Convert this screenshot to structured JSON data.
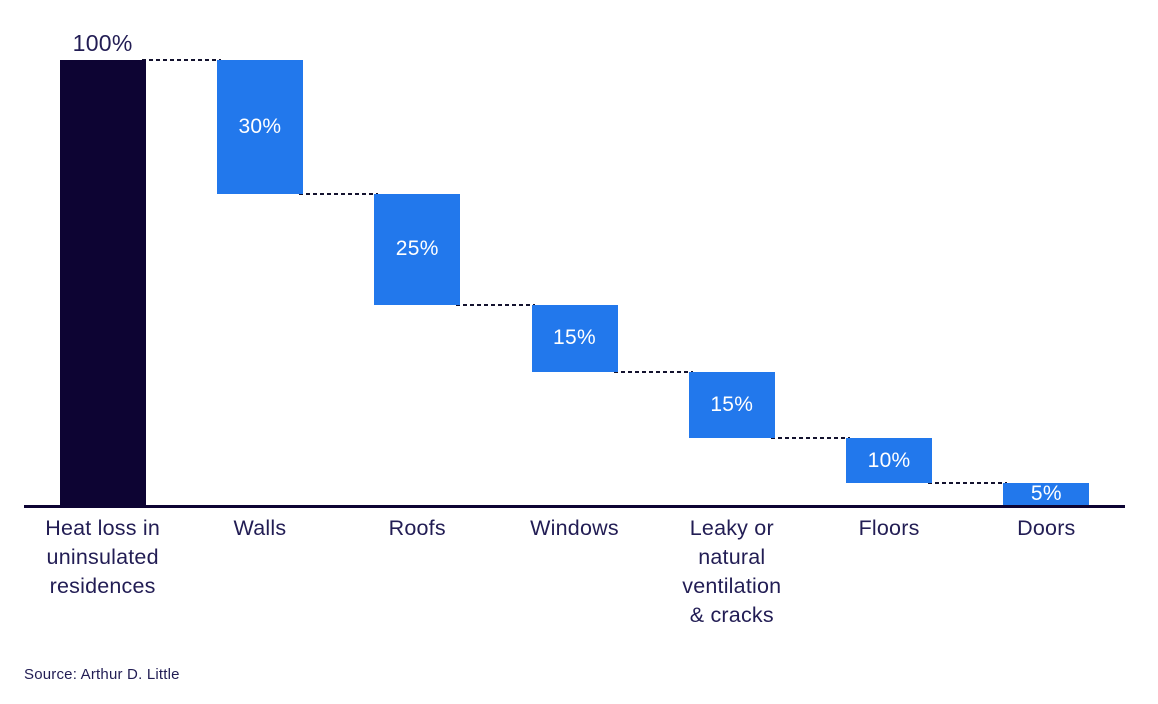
{
  "chart_data": {
    "type": "bar",
    "subtype": "waterfall",
    "title": "",
    "categories": [
      "Heat loss in\nuninsulated\nresidences",
      "Walls",
      "Roofs",
      "Windows",
      "Leaky or\nnatural\nventilation\n& cracks",
      "Floors",
      "Doors"
    ],
    "values": [
      100,
      30,
      25,
      15,
      15,
      10,
      5
    ],
    "value_labels": [
      "100%",
      "30%",
      "25%",
      "15%",
      "15%",
      "10%",
      "5%"
    ],
    "bar_roles": [
      "total",
      "step",
      "step",
      "step",
      "step",
      "step",
      "step"
    ],
    "running_levels": [
      [
        0,
        100
      ],
      [
        70,
        100
      ],
      [
        45,
        70
      ],
      [
        30,
        45
      ],
      [
        15,
        30
      ],
      [
        5,
        15
      ],
      [
        0,
        5
      ]
    ],
    "unit": "%",
    "ylim": [
      0,
      100
    ],
    "grid": false,
    "legend": false,
    "colors": {
      "total_bar": "#0d0433",
      "step_bar": "#2278ec",
      "text_navy": "#221d54",
      "value_inside": "#ffffff",
      "axis_color": "#0d0433",
      "connector_color": "#13122e"
    }
  },
  "footer": {
    "source": "Source: Arthur D. Little"
  }
}
